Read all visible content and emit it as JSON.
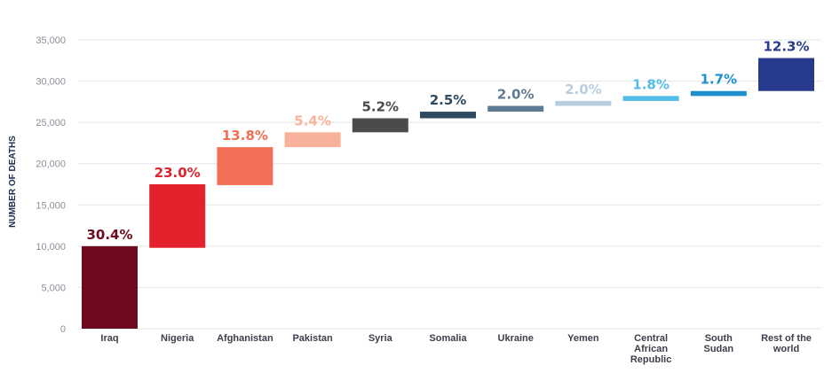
{
  "chart_data": {
    "type": "bar",
    "subtype": "waterfall",
    "ylabel": "NUMBER OF DEATHS",
    "ylim": [
      0,
      35000
    ],
    "yticks": [
      0,
      5000,
      10000,
      15000,
      20000,
      25000,
      30000,
      35000
    ],
    "ytick_labels": [
      "0",
      "5,000",
      "10,000",
      "15,000",
      "20,000",
      "25,000",
      "30,000",
      "35,000"
    ],
    "grid": true,
    "bars": [
      {
        "category": [
          "Iraq"
        ],
        "start": 0,
        "end": 10000,
        "label": "30.4%",
        "color": "#6e0a1e",
        "label_color": "#6e0a1e"
      },
      {
        "category": [
          "Nigeria"
        ],
        "start": 9800,
        "end": 17500,
        "label": "23.0%",
        "color": "#e3222d",
        "label_color": "#e3222d"
      },
      {
        "category": [
          "Afghanistan"
        ],
        "start": 17400,
        "end": 22000,
        "label": "13.8%",
        "color": "#f26f55",
        "label_color": "#f26f55"
      },
      {
        "category": [
          "Pakistan"
        ],
        "start": 22000,
        "end": 23800,
        "label": "5.4%",
        "color": "#f8b19a",
        "label_color": "#f8b19a"
      },
      {
        "category": [
          "Syria"
        ],
        "start": 23800,
        "end": 25500,
        "label": "5.2%",
        "color": "#4b4b4d",
        "label_color": "#4b4b4d"
      },
      {
        "category": [
          "Somalia"
        ],
        "start": 25500,
        "end": 26300,
        "label": "2.5%",
        "color": "#2e4a63",
        "label_color": "#2e4a63"
      },
      {
        "category": [
          "Ukraine"
        ],
        "start": 26300,
        "end": 27000,
        "label": "2.0%",
        "color": "#5f7a94",
        "label_color": "#5f7a94"
      },
      {
        "category": [
          "Yemen"
        ],
        "start": 27000,
        "end": 27600,
        "label": "2.0%",
        "color": "#b7cde0",
        "label_color": "#b7cde0"
      },
      {
        "category": [
          "Central",
          "African",
          "Republic"
        ],
        "start": 27600,
        "end": 28200,
        "label": "1.8%",
        "color": "#54bde8",
        "label_color": "#54bde8"
      },
      {
        "category": [
          "South",
          "Sudan"
        ],
        "start": 28200,
        "end": 28800,
        "label": "1.7%",
        "color": "#1f8fcc",
        "label_color": "#1f8fcc"
      },
      {
        "category": [
          "Rest of the",
          "world"
        ],
        "start": 28800,
        "end": 32800,
        "label": "12.3%",
        "color": "#283a8e",
        "label_color": "#283a8e"
      }
    ]
  }
}
